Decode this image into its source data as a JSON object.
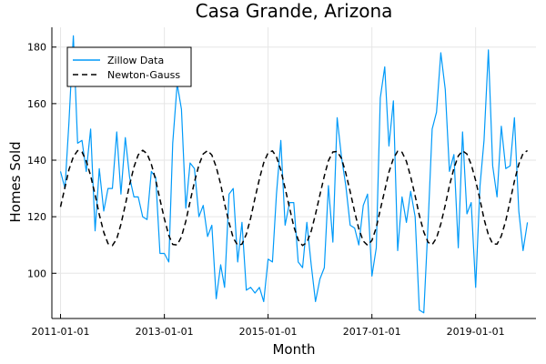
{
  "chart_data": {
    "type": "line",
    "title": "Casa Grande, Arizona",
    "xlabel": "Month",
    "ylabel": "Homes Sold",
    "x_range": [
      "2010-11-01",
      "2020-03-01"
    ],
    "ylim": [
      84,
      187
    ],
    "x_ticks": [
      "2011-01-01",
      "2013-01-01",
      "2015-01-01",
      "2017-01-01",
      "2019-01-01"
    ],
    "y_ticks": [
      100,
      120,
      140,
      160,
      180
    ],
    "grid": true,
    "legend_position": "top-left",
    "series": [
      {
        "name": "Zillow Data",
        "style": "solid",
        "color": "#009af9",
        "x_start": "2011-01-01",
        "x_step": "1 month",
        "values": [
          136,
          130,
          153,
          184,
          146,
          147,
          136,
          151,
          115,
          137,
          122,
          130,
          130,
          150,
          128,
          148,
          134,
          127,
          127,
          120,
          119,
          136,
          134,
          107,
          107,
          104,
          146,
          167,
          158,
          123,
          139,
          137,
          120,
          124,
          113,
          117,
          91,
          103,
          95,
          128,
          130,
          104,
          118,
          94,
          95,
          93,
          95,
          90,
          105,
          104,
          128,
          147,
          117,
          125,
          125,
          104,
          102,
          118,
          103,
          90,
          98,
          102,
          131,
          111,
          155,
          141,
          131,
          117,
          116,
          110,
          124,
          128,
          99,
          109,
          162,
          173,
          145,
          161,
          108,
          127,
          118,
          129,
          120,
          87,
          86,
          118,
          151,
          157,
          178,
          165,
          136,
          142,
          109,
          150,
          121,
          125,
          95,
          131,
          147,
          179,
          138,
          127,
          152,
          137,
          138,
          155,
          122,
          108,
          118
        ]
      },
      {
        "name": "Newton-Gauss",
        "style": "dashed",
        "color": "#000000",
        "x_start": "2011-01-01",
        "x_step": "1 month",
        "values": [
          123.5,
          130.4,
          136.6,
          141.2,
          143.4,
          142.9,
          139.7,
          134.5,
          127.8,
          120.8,
          114.5,
          110.5,
          109.8,
          112.2,
          117.3,
          124.2,
          131.3,
          137.6,
          141.9,
          143.5,
          142.3,
          138.6,
          133.0,
          126.1,
          119.3,
          113.4,
          110.2,
          110.0,
          112.9,
          118.4,
          125.4,
          132.3,
          138.3,
          142.2,
          143.4,
          141.8,
          137.6,
          131.5,
          124.6,
          117.9,
          112.5,
          109.9,
          110.3,
          113.8,
          119.6,
          126.6,
          133.4,
          139.1,
          142.6,
          143.3,
          141.2,
          136.5,
          130.1,
          123.1,
          116.6,
          111.8,
          109.8,
          110.9,
          114.9,
          120.9,
          127.8,
          134.4,
          139.8,
          142.9,
          143.1,
          140.6,
          135.4,
          128.9,
          121.8,
          115.7,
          111.4,
          109.9,
          111.6,
          116.2,
          122.5,
          129.3,
          135.8,
          140.6,
          143.2,
          142.8,
          139.6,
          134.1,
          127.4,
          120.5,
          114.6,
          110.9,
          110.1,
          112.5,
          117.4,
          124.1,
          131.0,
          137.1,
          141.5,
          143.3,
          142.2,
          138.5,
          132.8,
          126.0,
          119.2,
          113.6,
          110.4,
          110.3,
          113.2,
          118.6,
          125.6,
          132.6,
          138.6,
          142.4,
          143.4
        ]
      }
    ]
  }
}
